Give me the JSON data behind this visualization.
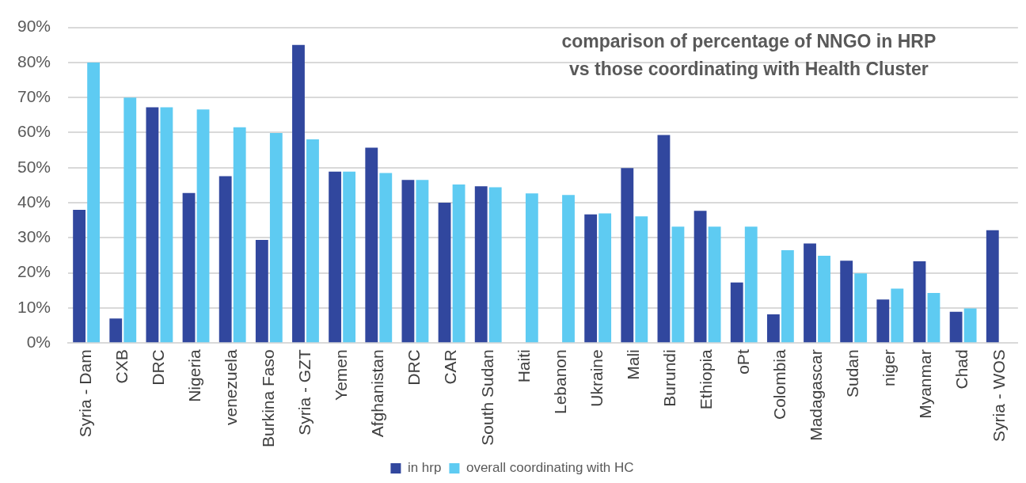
{
  "chart_data": {
    "type": "bar",
    "title": "comparison of percentage of NNGO in HRP\nvs those coordinating with Health Cluster",
    "categories": [
      "Syria - Dam",
      "CXB",
      "DRC",
      "Nigeria",
      "venezuela",
      "Burkina Faso",
      "Syria - GZT",
      "Yemen",
      "Afghanistan",
      "DRC",
      "CAR",
      "South Sudan",
      "Haiti",
      "Lebanon",
      "Ukraine",
      "Mali",
      "Burundi",
      "Ethiopia",
      "oPt",
      "Colombia",
      "Madagascar",
      "Sudan",
      "niger",
      "Myanmar",
      "Chad",
      "Syria - WOS"
    ],
    "series": [
      {
        "name": "in hrp",
        "color": "#31479e",
        "values": [
          38.0,
          7.0,
          67.2,
          42.8,
          47.6,
          29.4,
          85.0,
          48.9,
          55.7,
          46.5,
          40.0,
          44.7,
          null,
          null,
          36.7,
          49.9,
          59.3,
          37.7,
          17.3,
          8.2,
          28.4,
          23.5,
          12.4,
          23.3,
          8.9,
          32.2
        ]
      },
      {
        "name": "overall coordinating with HC",
        "color": "#5ecbf2",
        "values": [
          80.0,
          70.0,
          67.2,
          66.6,
          61.5,
          59.9,
          58.1,
          48.9,
          48.5,
          46.5,
          45.2,
          44.4,
          42.7,
          42.2,
          37.0,
          36.1,
          33.2,
          33.2,
          33.2,
          26.5,
          24.9,
          19.9,
          15.5,
          14.3,
          9.9,
          null
        ]
      }
    ],
    "ylim": [
      0,
      90
    ],
    "yticks": [
      {
        "value": 0,
        "label": "0%"
      },
      {
        "value": 10,
        "label": "10%"
      },
      {
        "value": 20,
        "label": "20%"
      },
      {
        "value": 30,
        "label": "30%"
      },
      {
        "value": 40,
        "label": "40%"
      },
      {
        "value": 50,
        "label": "50%"
      },
      {
        "value": 60,
        "label": "60%"
      },
      {
        "value": 70,
        "label": "70%"
      },
      {
        "value": 80,
        "label": "80%"
      },
      {
        "value": 90,
        "label": "90%"
      }
    ],
    "grid": "y",
    "legend": "bottom"
  }
}
